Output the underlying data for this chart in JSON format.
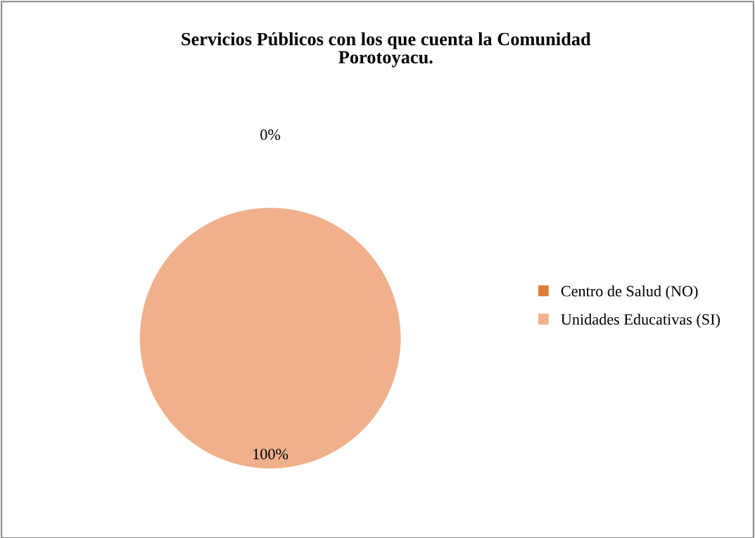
{
  "chart_data": {
    "type": "pie",
    "title": "Servicios Públicos con los que cuenta la Comunidad\nPorotoyacu.",
    "categories": [
      "Centro de Salud (NO)",
      "Unidades Educativas (SI)"
    ],
    "values": [
      0,
      100
    ],
    "colors": [
      "#e07b39",
      "#f0b08c"
    ],
    "value_labels": [
      "0%",
      "100%"
    ],
    "legend": "right"
  }
}
